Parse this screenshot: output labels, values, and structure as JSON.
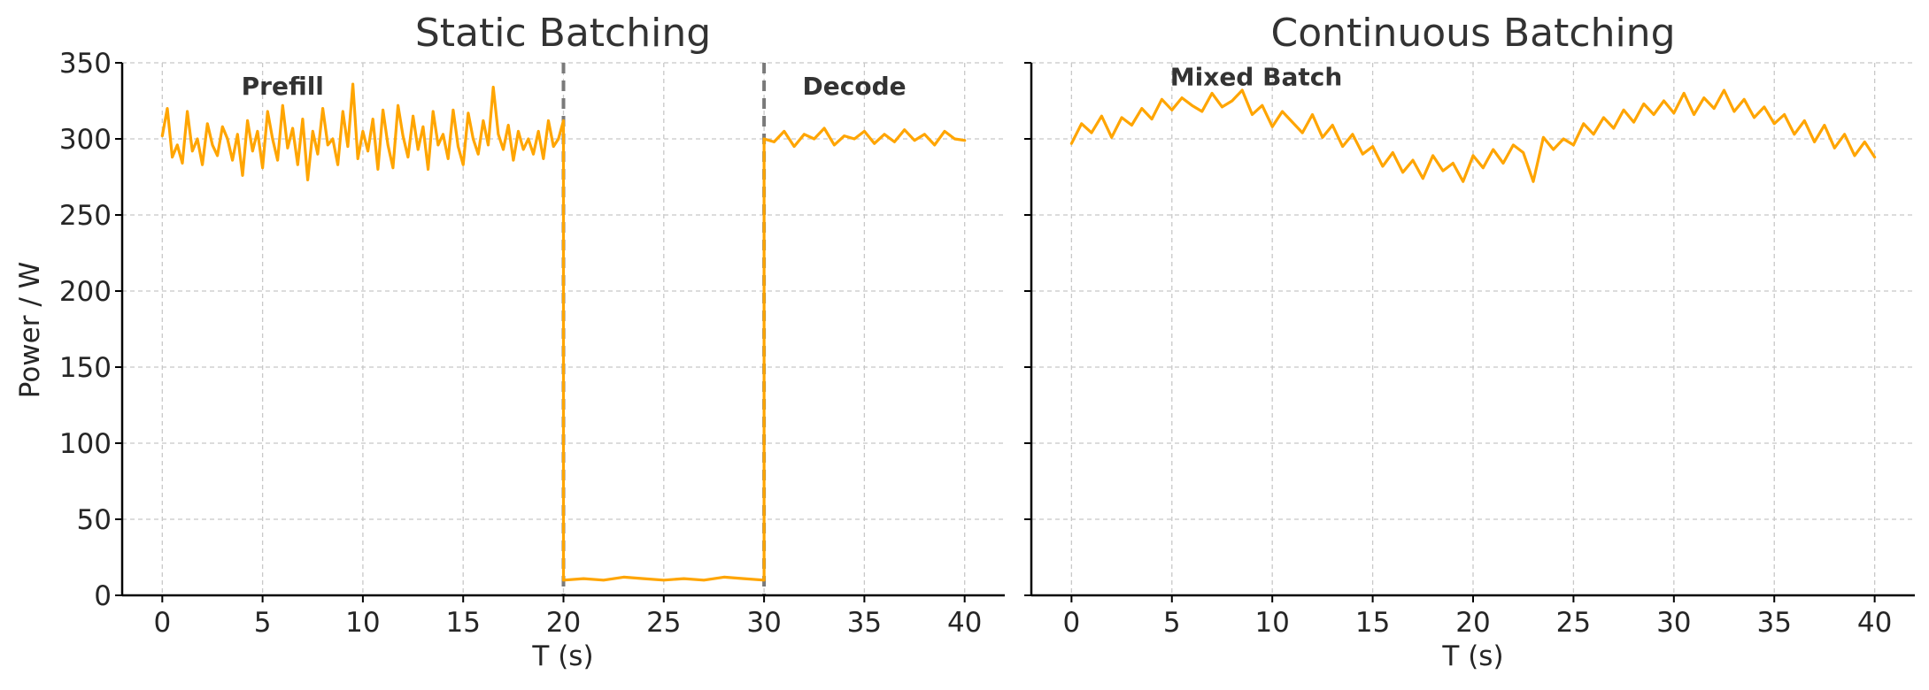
{
  "colors": {
    "series": "#FFA500",
    "vline": "#7a7a7a"
  },
  "chart_data": [
    {
      "type": "line",
      "title": "Static Batching",
      "xlabel": "T (s)",
      "ylabel": "Power / W",
      "xlim": [
        -2,
        42
      ],
      "ylim": [
        0,
        350
      ],
      "xticks": [
        0,
        5,
        10,
        15,
        20,
        25,
        30,
        35,
        40
      ],
      "yticks": [
        0,
        50,
        100,
        150,
        200,
        250,
        300,
        350
      ],
      "grid": true,
      "vlines": [
        20,
        30
      ],
      "annotations": [
        {
          "text": "Prefill",
          "x": 6,
          "y": 335
        },
        {
          "text": "Decode",
          "x": 34.5,
          "y": 335
        }
      ],
      "series": [
        {
          "x": [
            0,
            0.25,
            0.5,
            0.75,
            1,
            1.25,
            1.5,
            1.75,
            2,
            2.25,
            2.5,
            2.75,
            3,
            3.25,
            3.5,
            3.75,
            4,
            4.25,
            4.5,
            4.75,
            5,
            5.25,
            5.5,
            5.75,
            6,
            6.25,
            6.5,
            6.75,
            7,
            7.25,
            7.5,
            7.75,
            8,
            8.25,
            8.5,
            8.75,
            9,
            9.25,
            9.5,
            9.75,
            10,
            10.25,
            10.5,
            10.75,
            11,
            11.25,
            11.5,
            11.75,
            12,
            12.25,
            12.5,
            12.75,
            13,
            13.25,
            13.5,
            13.75,
            14,
            14.25,
            14.5,
            14.75,
            15,
            15.25,
            15.5,
            15.75,
            16,
            16.25,
            16.5,
            16.75,
            17,
            17.25,
            17.5,
            17.75,
            18,
            18.25,
            18.5,
            18.75,
            19,
            19.25,
            19.5,
            19.75,
            20,
            20,
            21,
            22,
            23,
            24,
            25,
            26,
            27,
            28,
            29,
            30,
            30,
            30.5,
            31,
            31.5,
            32,
            32.5,
            33,
            33.5,
            34,
            34.5,
            35,
            35.5,
            36,
            36.5,
            37,
            37.5,
            38,
            38.5,
            39,
            39.5,
            40
          ],
          "y": [
            302,
            320,
            288,
            296,
            284,
            318,
            292,
            300,
            283,
            310,
            296,
            289,
            308,
            300,
            286,
            303,
            276,
            312,
            292,
            305,
            281,
            318,
            300,
            286,
            322,
            294,
            307,
            283,
            313,
            273,
            305,
            290,
            320,
            296,
            300,
            283,
            318,
            295,
            336,
            287,
            305,
            292,
            313,
            280,
            319,
            296,
            281,
            322,
            302,
            288,
            315,
            293,
            308,
            280,
            318,
            296,
            303,
            287,
            319,
            295,
            283,
            317,
            300,
            290,
            312,
            296,
            334,
            303,
            293,
            309,
            286,
            305,
            293,
            300,
            290,
            305,
            287,
            312,
            295,
            300,
            312,
            10,
            11,
            10,
            12,
            11,
            10,
            11,
            10,
            12,
            11,
            10,
            300,
            298,
            305,
            295,
            303,
            300,
            307,
            296,
            302,
            300,
            305,
            297,
            303,
            298,
            306,
            299,
            303,
            296,
            305,
            300,
            299
          ]
        }
      ]
    },
    {
      "type": "line",
      "title": "Continuous Batching",
      "xlabel": "T (s)",
      "xlim": [
        -2,
        42
      ],
      "ylim": [
        0,
        350
      ],
      "xticks": [
        0,
        5,
        10,
        15,
        20,
        25,
        30,
        35,
        40
      ],
      "yticks": [
        0,
        50,
        100,
        150,
        200,
        250,
        300,
        350
      ],
      "grid": true,
      "annotations": [
        {
          "text": "Mixed Batch",
          "x": 9.2,
          "y": 341
        }
      ],
      "series": [
        {
          "x": [
            0,
            0.5,
            1,
            1.5,
            2,
            2.5,
            3,
            3.5,
            4,
            4.5,
            5,
            5.5,
            6,
            6.5,
            7,
            7.5,
            8,
            8.5,
            9,
            9.5,
            10,
            10.5,
            11,
            11.5,
            12,
            12.5,
            13,
            13.5,
            14,
            14.5,
            15,
            15.5,
            16,
            16.5,
            17,
            17.5,
            18,
            18.5,
            19,
            19.5,
            20,
            20.5,
            21,
            21.5,
            22,
            22.5,
            23,
            23.5,
            24,
            24.5,
            25,
            25.5,
            26,
            26.5,
            27,
            27.5,
            28,
            28.5,
            29,
            29.5,
            30,
            30.5,
            31,
            31.5,
            32,
            32.5,
            33,
            33.5,
            34,
            34.5,
            35,
            35.5,
            36,
            36.5,
            37,
            37.5,
            38,
            38.5,
            39,
            39.5,
            40
          ],
          "y": [
            297,
            310,
            304,
            315,
            301,
            314,
            309,
            320,
            313,
            326,
            319,
            327,
            322,
            318,
            330,
            321,
            325,
            332,
            316,
            322,
            308,
            318,
            311,
            304,
            316,
            301,
            309,
            295,
            303,
            290,
            295,
            282,
            291,
            278,
            286,
            274,
            289,
            279,
            284,
            272,
            289,
            281,
            293,
            284,
            296,
            291,
            272,
            301,
            293,
            300,
            296,
            310,
            303,
            314,
            307,
            319,
            311,
            323,
            316,
            325,
            317,
            330,
            316,
            327,
            320,
            332,
            318,
            326,
            314,
            321,
            310,
            316,
            303,
            312,
            298,
            309,
            294,
            303,
            289,
            298,
            288
          ]
        }
      ]
    }
  ]
}
